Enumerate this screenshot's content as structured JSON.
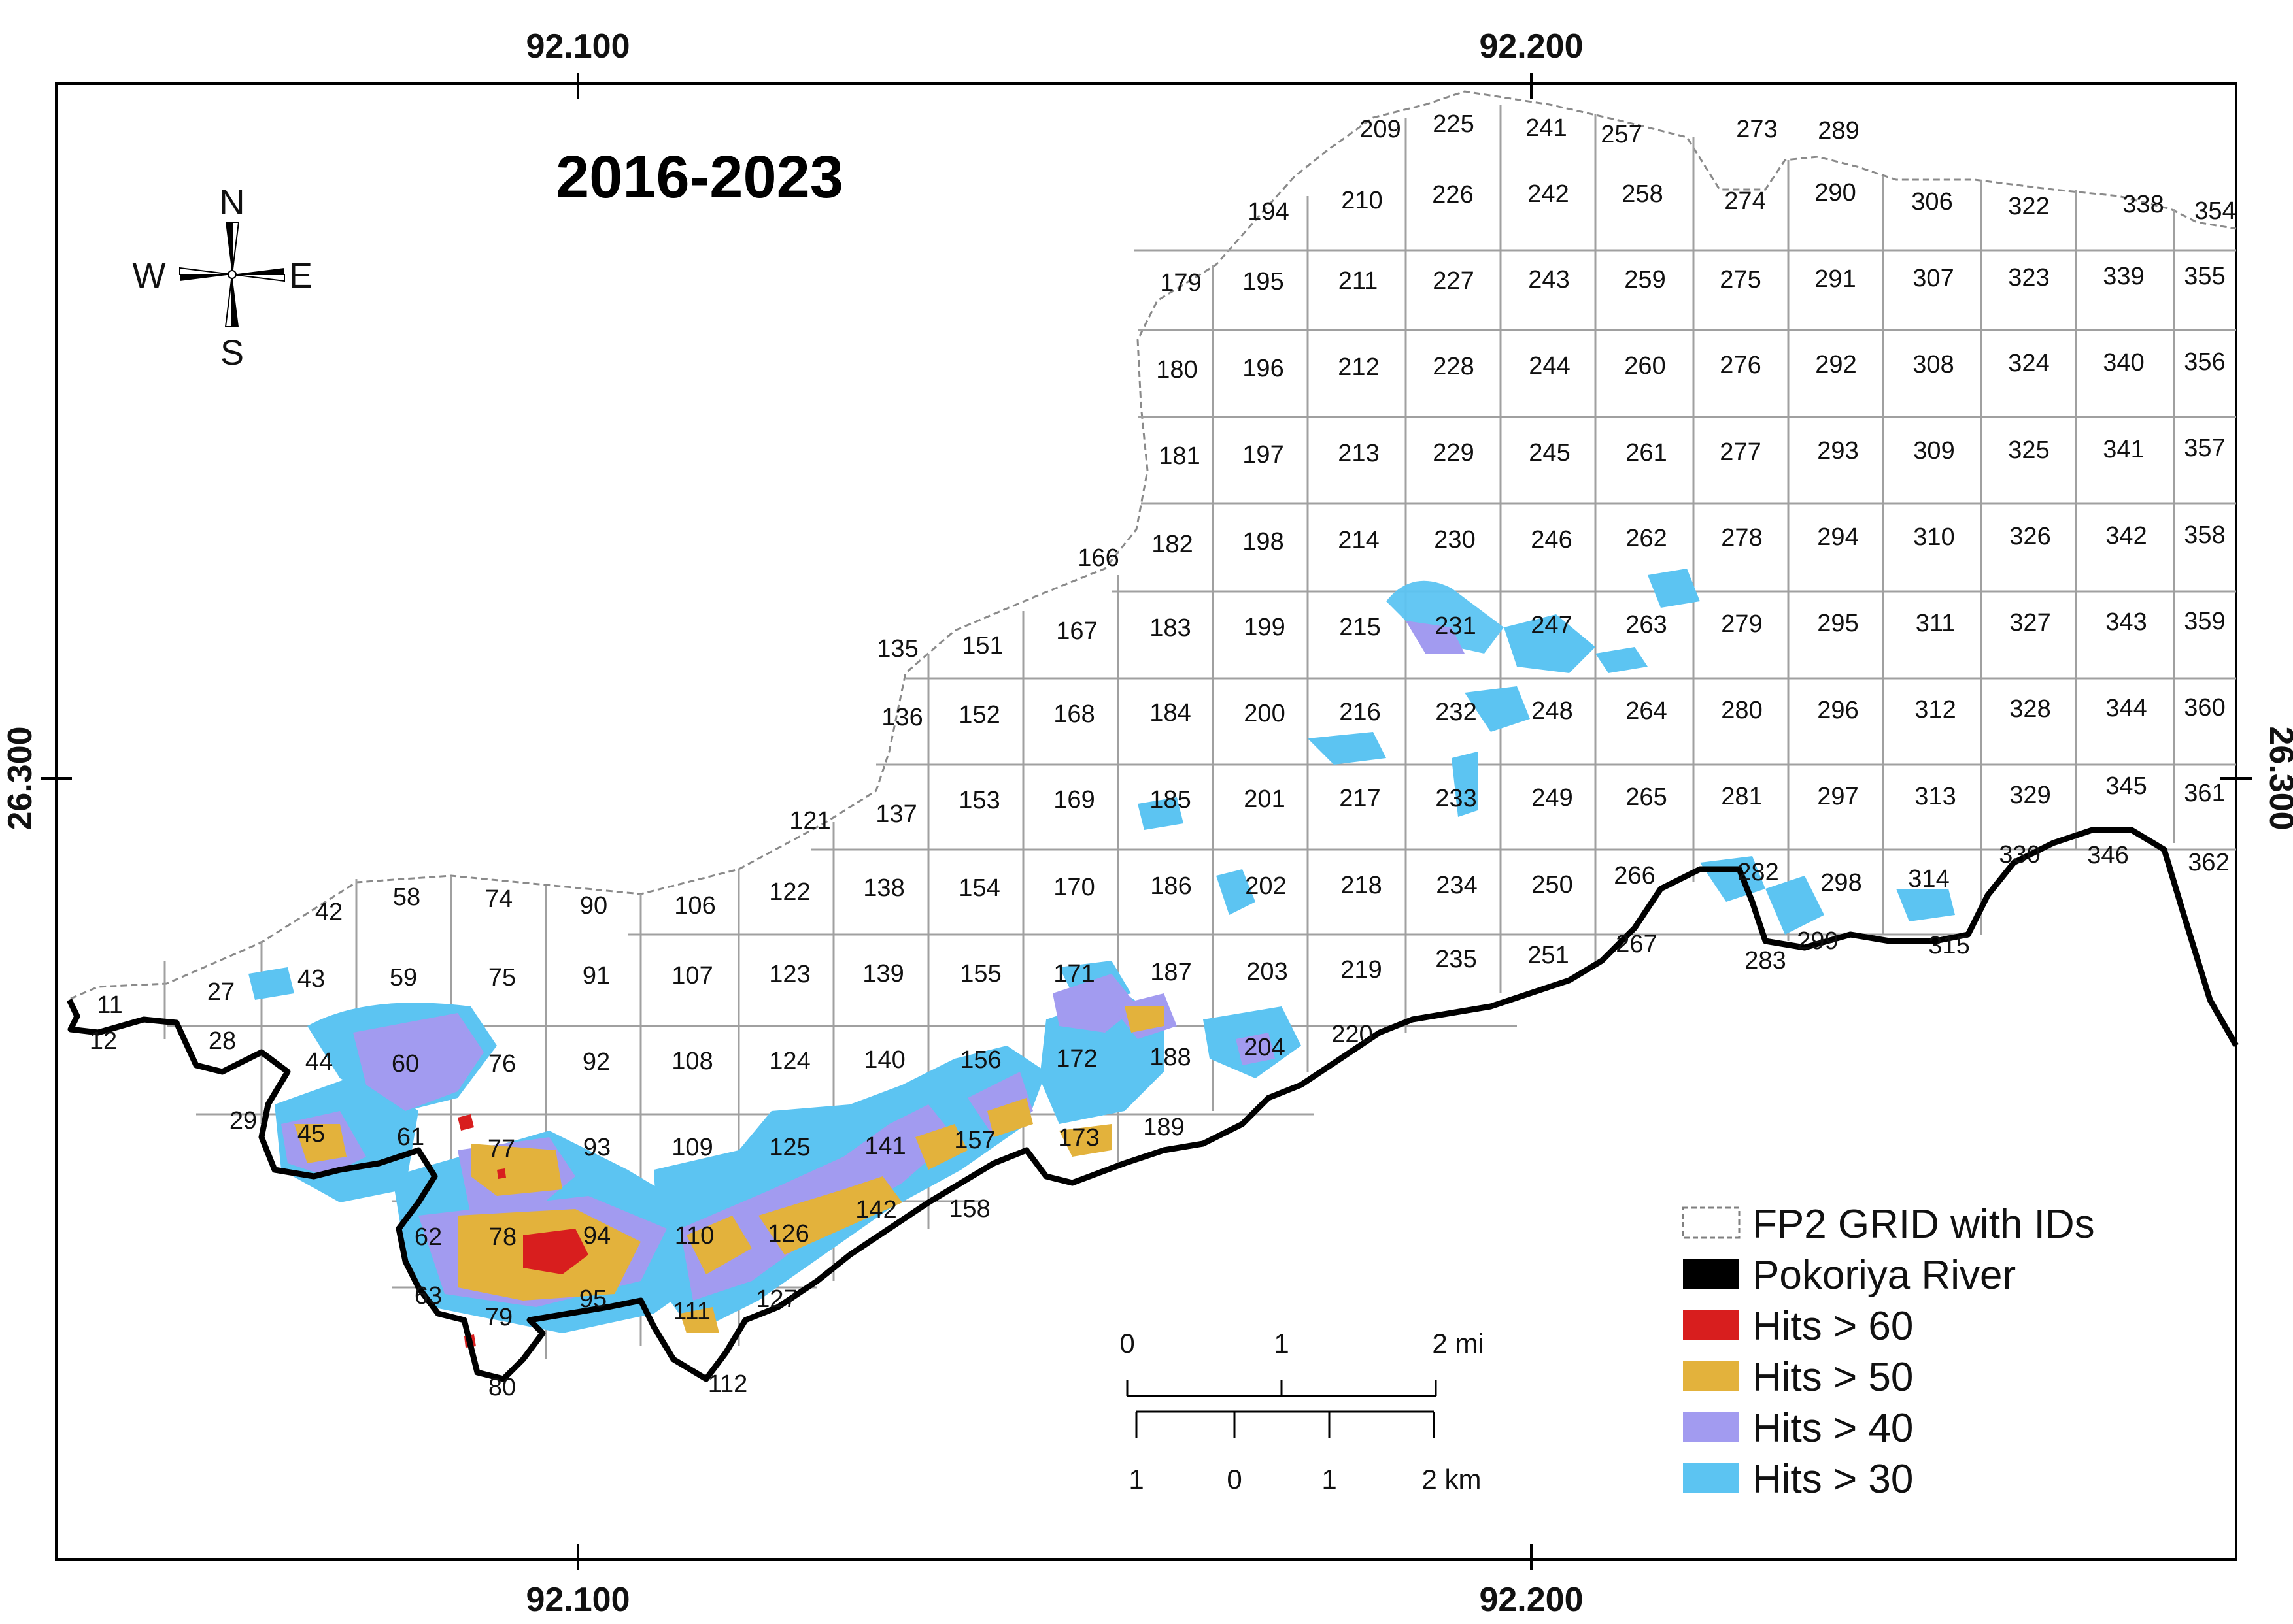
{
  "title": "2016-2023",
  "coordinates": {
    "top": [
      "92.100",
      "92.200"
    ],
    "bottom": [
      "92.100",
      "92.200"
    ],
    "left": [
      "26.300"
    ],
    "right": [
      "26.300"
    ]
  },
  "compass": {
    "n": "N",
    "s": "S",
    "e": "E",
    "w": "W"
  },
  "legend": [
    {
      "label": "FP2 GRID with IDs",
      "color": "#ffffff",
      "style": "dashed-box",
      "icon": "dashed-square-icon"
    },
    {
      "label": "Pokoriya River",
      "color": "#000000",
      "style": "fill",
      "icon": "river-swatch-icon"
    },
    {
      "label": "Hits > 60",
      "color": "#d81e1e",
      "style": "fill",
      "icon": "red-swatch-icon"
    },
    {
      "label": "Hits > 50",
      "color": "#e3b23c",
      "style": "fill",
      "icon": "gold-swatch-icon"
    },
    {
      "label": "Hits > 40",
      "color": "#a29bf0",
      "style": "fill",
      "icon": "lavender-swatch-icon"
    },
    {
      "label": "Hits > 30",
      "color": "#5cc4f2",
      "style": "fill",
      "icon": "skyblue-swatch-icon"
    }
  ],
  "scale_bar": {
    "mi_labels": [
      "0",
      "1",
      "2 mi"
    ],
    "km_labels": [
      "1",
      "0",
      "1",
      "2 km"
    ]
  },
  "grid_ids": [
    "11",
    "12",
    "27",
    "28",
    "29",
    "42",
    "43",
    "44",
    "45",
    "58",
    "59",
    "60",
    "61",
    "62",
    "63",
    "74",
    "75",
    "76",
    "77",
    "78",
    "79",
    "80",
    "90",
    "91",
    "92",
    "93",
    "94",
    "95",
    "106",
    "107",
    "108",
    "109",
    "110",
    "111",
    "112",
    "121",
    "122",
    "123",
    "124",
    "125",
    "126",
    "127",
    "135",
    "136",
    "137",
    "138",
    "139",
    "140",
    "141",
    "142",
    "151",
    "152",
    "153",
    "154",
    "155",
    "156",
    "157",
    "158",
    "166",
    "167",
    "168",
    "169",
    "170",
    "171",
    "172",
    "173",
    "179",
    "180",
    "181",
    "182",
    "183",
    "184",
    "185",
    "186",
    "187",
    "188",
    "189",
    "194",
    "195",
    "196",
    "197",
    "198",
    "199",
    "200",
    "201",
    "202",
    "203",
    "204",
    "209",
    "210",
    "211",
    "212",
    "213",
    "214",
    "215",
    "216",
    "217",
    "218",
    "219",
    "220",
    "225",
    "226",
    "227",
    "228",
    "229",
    "230",
    "231",
    "232",
    "233",
    "234",
    "235",
    "241",
    "242",
    "243",
    "244",
    "245",
    "246",
    "247",
    "248",
    "249",
    "250",
    "251",
    "257",
    "258",
    "259",
    "260",
    "261",
    "262",
    "263",
    "264",
    "265",
    "266",
    "267",
    "273",
    "274",
    "275",
    "276",
    "277",
    "278",
    "279",
    "280",
    "281",
    "282",
    "283",
    "289",
    "290",
    "291",
    "292",
    "293",
    "294",
    "295",
    "296",
    "297",
    "298",
    "299",
    "306",
    "307",
    "308",
    "309",
    "310",
    "311",
    "312",
    "313",
    "314",
    "315",
    "322",
    "323",
    "324",
    "325",
    "326",
    "327",
    "328",
    "329",
    "330",
    "338",
    "339",
    "340",
    "341",
    "342",
    "343",
    "344",
    "345",
    "346",
    "354",
    "355",
    "356",
    "357",
    "358",
    "359",
    "360",
    "361",
    "362"
  ],
  "colors": {
    "hits30": "#5cc4f2",
    "hits40": "#a29bf0",
    "hits50": "#e3b23c",
    "hits60": "#d81e1e",
    "river": "#000000",
    "grid": "#a0a0a0"
  }
}
